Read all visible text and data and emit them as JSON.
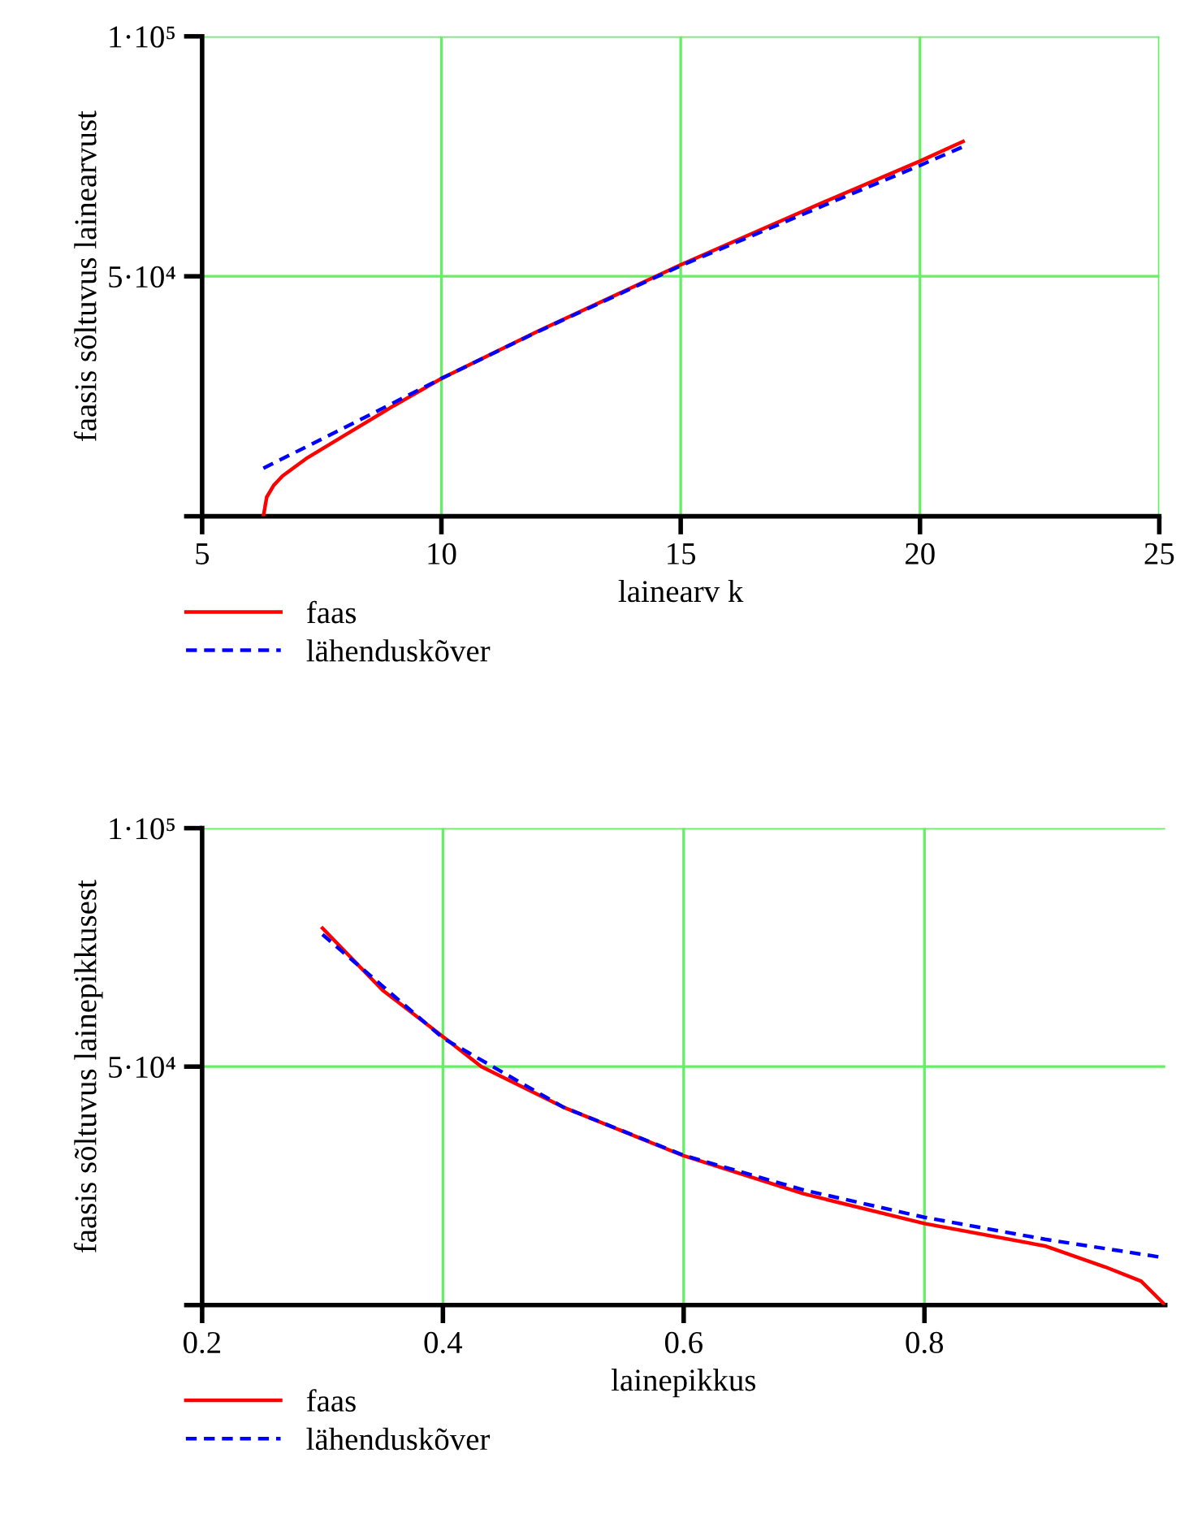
{
  "chart_data": [
    {
      "type": "line",
      "xlabel": "lainearv k",
      "ylabel": "faasis sõltuvus lainearvust",
      "xlim": [
        5,
        25
      ],
      "xticks": [
        5,
        10,
        15,
        20,
        25
      ],
      "ylim": [
        0,
        100000
      ],
      "yticks": [
        {
          "value": 0,
          "label": null
        },
        {
          "value": 50000,
          "label": "5·10⁴"
        },
        {
          "value": 100000,
          "label": "1·10⁵"
        }
      ],
      "grid": true,
      "legend": "bottom left",
      "series": [
        {
          "name": "faas",
          "color": "#ff0000",
          "line_style": "solid",
          "x": [
            6.28,
            6.35,
            6.5,
            6.68,
            7.2,
            8,
            9,
            10,
            12,
            15,
            18,
            20,
            20.9
          ],
          "values": [
            0,
            4000,
            6500,
            8400,
            12200,
            17000,
            23000,
            28700,
            38500,
            52400,
            65500,
            74000,
            78100
          ]
        },
        {
          "name": "lähenduskõver",
          "color": "#0000ff",
          "line_style": "dashed",
          "x": [
            6.28,
            8,
            10,
            12,
            15,
            18,
            20,
            20.9
          ],
          "values": [
            10000,
            18600,
            28700,
            38400,
            52200,
            64800,
            73100,
            77000
          ]
        }
      ]
    },
    {
      "type": "line",
      "xlabel": "lainepikkus",
      "ylabel": "faasis sõltuvus lainepikkusest",
      "xlim": [
        0.2,
        1.0
      ],
      "xticks": [
        0.2,
        0.4,
        0.6,
        0.8
      ],
      "ylim": [
        0,
        100000
      ],
      "yticks": [
        {
          "value": 0,
          "label": null
        },
        {
          "value": 50000,
          "label": "5·10⁴"
        },
        {
          "value": 100000,
          "label": "1·10⁵"
        }
      ],
      "grid": true,
      "legend": "bottom left",
      "series": [
        {
          "name": "faas",
          "color": "#ff0000",
          "line_style": "solid",
          "x": [
            0.3,
            0.35,
            0.4,
            0.432,
            0.5,
            0.6,
            0.7,
            0.8,
            0.9,
            0.95,
            0.98,
            1.0
          ],
          "values": [
            79000,
            66000,
            56300,
            50000,
            41500,
            31300,
            23300,
            17100,
            12400,
            8000,
            5000,
            0
          ]
        },
        {
          "name": "lähenduskõver",
          "color": "#0000ff",
          "line_style": "dashed",
          "x": [
            0.3,
            0.4,
            0.5,
            0.6,
            0.7,
            0.8,
            0.9,
            1.0
          ],
          "values": [
            77700,
            56000,
            41500,
            31400,
            24100,
            18400,
            13800,
            9900
          ]
        }
      ]
    }
  ]
}
